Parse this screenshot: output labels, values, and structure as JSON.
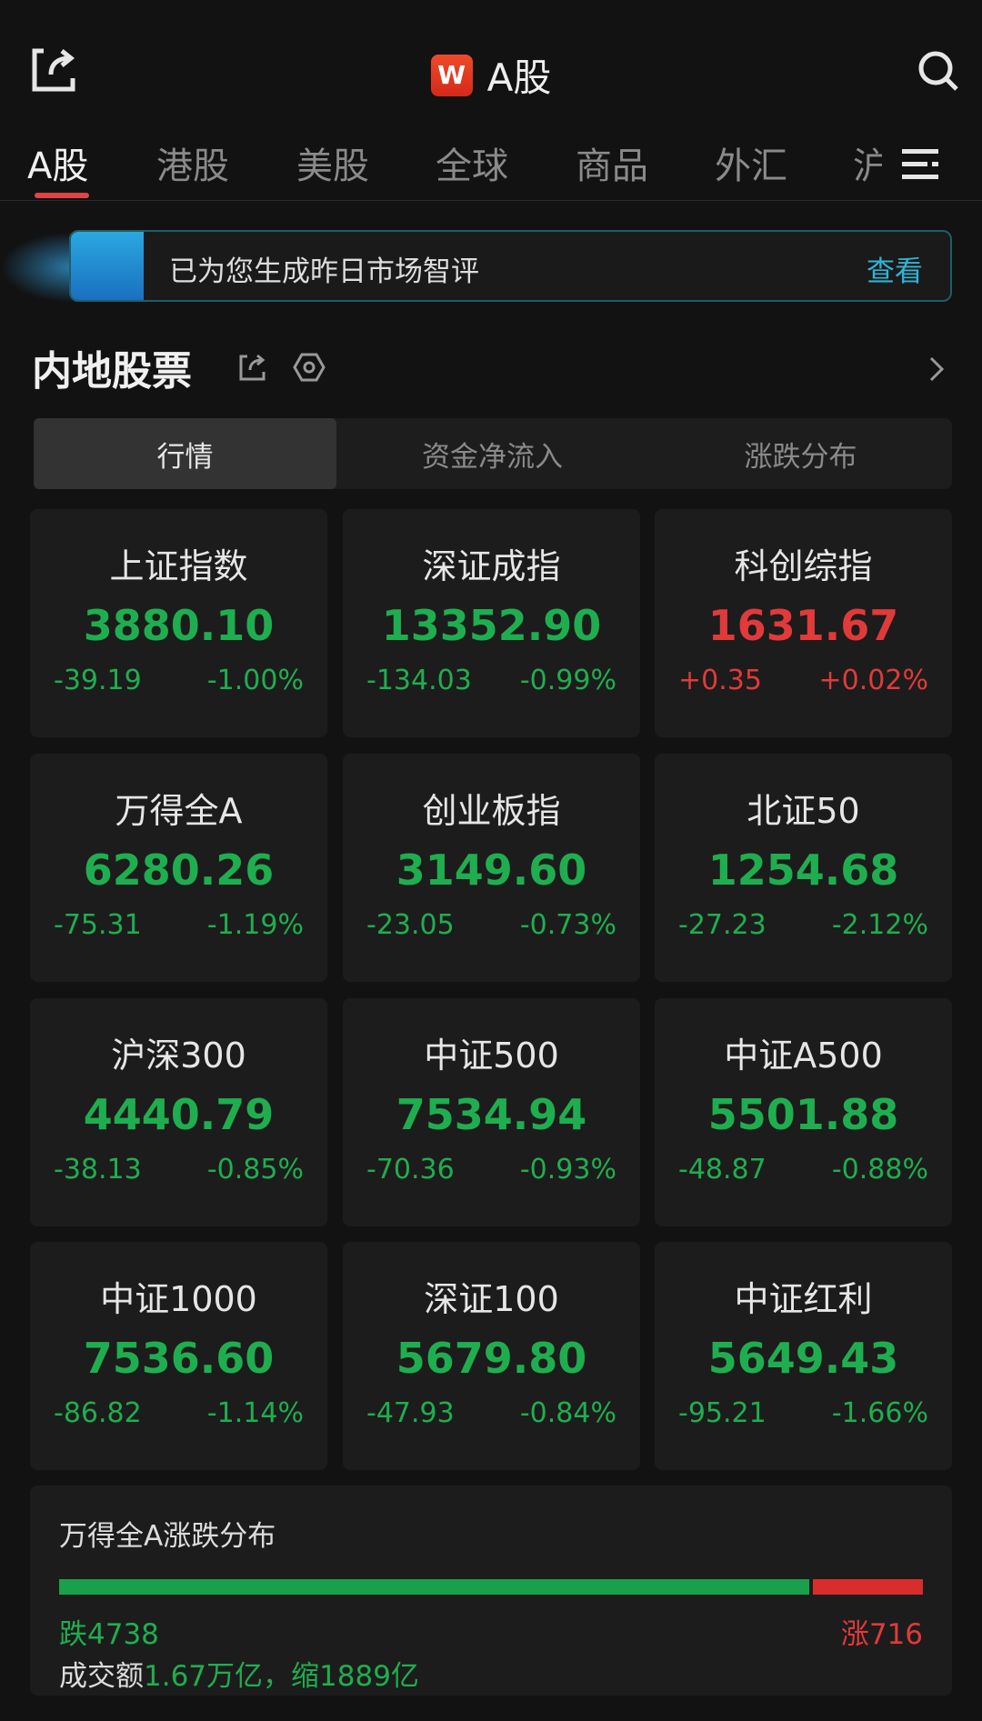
{
  "header": {
    "title": "A股",
    "logo_text": "W"
  },
  "tabs": [
    "A股",
    "港股",
    "美股",
    "全球",
    "商品",
    "外汇",
    "沪"
  ],
  "banner": {
    "text": "已为您生成昨日市场智评",
    "link": "查看"
  },
  "section": {
    "title": "内地股票"
  },
  "segments": [
    "行情",
    "资金净流入",
    "涨跌分布"
  ],
  "colors": {
    "down": "#1fae4f",
    "up": "#e03a3a",
    "accent": "#2fb5d6"
  },
  "indices": [
    {
      "name": "上证指数",
      "price": "3880.10",
      "change": "-39.19",
      "pct": "-1.00%",
      "dir": "down"
    },
    {
      "name": "深证成指",
      "price": "13352.90",
      "change": "-134.03",
      "pct": "-0.99%",
      "dir": "down"
    },
    {
      "name": "科创综指",
      "price": "1631.67",
      "change": "+0.35",
      "pct": "+0.02%",
      "dir": "up"
    },
    {
      "name": "万得全A",
      "price": "6280.26",
      "change": "-75.31",
      "pct": "-1.19%",
      "dir": "down"
    },
    {
      "name": "创业板指",
      "price": "3149.60",
      "change": "-23.05",
      "pct": "-0.73%",
      "dir": "down"
    },
    {
      "name": "北证50",
      "price": "1254.68",
      "change": "-27.23",
      "pct": "-2.12%",
      "dir": "down"
    },
    {
      "name": "沪深300",
      "price": "4440.79",
      "change": "-38.13",
      "pct": "-0.85%",
      "dir": "down"
    },
    {
      "name": "中证500",
      "price": "7534.94",
      "change": "-70.36",
      "pct": "-0.93%",
      "dir": "down"
    },
    {
      "name": "中证A500",
      "price": "5501.88",
      "change": "-48.87",
      "pct": "-0.88%",
      "dir": "down"
    },
    {
      "name": "中证1000",
      "price": "7536.60",
      "change": "-86.82",
      "pct": "-1.14%",
      "dir": "down"
    },
    {
      "name": "深证100",
      "price": "5679.80",
      "change": "-47.93",
      "pct": "-0.84%",
      "dir": "down"
    },
    {
      "name": "中证红利",
      "price": "5649.43",
      "change": "-95.21",
      "pct": "-1.66%",
      "dir": "down"
    }
  ],
  "distribution": {
    "title": "万得全A涨跌分布",
    "falls_label": "跌4738",
    "falls": 4738,
    "rises_label": "涨716",
    "rises": 716,
    "turnover_label": "成交额",
    "turnover_value": "1.67万亿，缩1889亿"
  }
}
